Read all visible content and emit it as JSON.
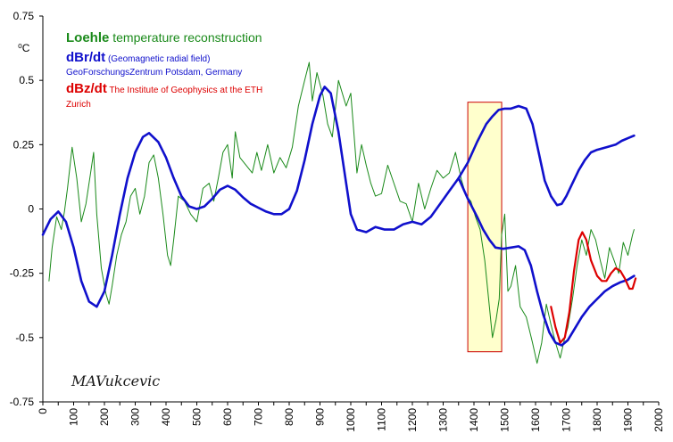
{
  "chart_data": {
    "type": "line",
    "xlim": [
      0,
      2000
    ],
    "ylim": [
      -0.75,
      0.75
    ],
    "x_ticks": [
      "0",
      "100",
      "200",
      "300",
      "400",
      "500",
      "600",
      "700",
      "800",
      "900",
      "1000",
      "1100",
      "1200",
      "1300",
      "1400",
      "1500",
      "1600",
      "1700",
      "1800",
      "1900",
      "2000"
    ],
    "y_ticks": [
      "0.75",
      "0.5",
      "0.25",
      "0",
      "-0.25",
      "-0.5",
      "-0.75"
    ],
    "y_unit": "⁰C",
    "legend": [
      {
        "bold": "Loehle",
        "text": " temperature reconstruction",
        "color": "#1a8a1a"
      },
      {
        "bold": "dBr/dt",
        "text": " (Geomagnetic radial field)",
        "color": "#1010cc"
      },
      {
        "bold": "",
        "text": "GeoForschungsZentrum Potsdam, Germany",
        "color": "#1010cc"
      },
      {
        "bold": "dBz/dt",
        "text": " The Institute of Geophysics at the ETH",
        "color": "#dd0000"
      },
      {
        "bold": "",
        "text": "Zurich",
        "color": "#dd0000"
      }
    ],
    "signature": "MAVukcevic",
    "highlight_box": {
      "x_range": [
        1380,
        1490
      ],
      "y_range": [
        -0.555,
        0.415
      ],
      "fill": "#ffffcc",
      "stroke": "#cc0000"
    },
    "series": [
      {
        "name": "Loehle",
        "color": "#1a8a1a",
        "points": [
          [
            20,
            -0.28
          ],
          [
            30,
            -0.15
          ],
          [
            45,
            -0.03
          ],
          [
            60,
            -0.08
          ],
          [
            70,
            -0.01
          ],
          [
            80,
            0.08
          ],
          [
            95,
            0.24
          ],
          [
            110,
            0.12
          ],
          [
            125,
            -0.05
          ],
          [
            140,
            0.02
          ],
          [
            155,
            0.14
          ],
          [
            165,
            0.22
          ],
          [
            175,
            -0.02
          ],
          [
            190,
            -0.23
          ],
          [
            205,
            -0.33
          ],
          [
            215,
            -0.37
          ],
          [
            225,
            -0.3
          ],
          [
            240,
            -0.18
          ],
          [
            255,
            -0.1
          ],
          [
            270,
            -0.05
          ],
          [
            285,
            0.05
          ],
          [
            300,
            0.08
          ],
          [
            315,
            -0.02
          ],
          [
            330,
            0.05
          ],
          [
            345,
            0.18
          ],
          [
            360,
            0.21
          ],
          [
            375,
            0.12
          ],
          [
            390,
            -0.02
          ],
          [
            405,
            -0.18
          ],
          [
            415,
            -0.22
          ],
          [
            425,
            -0.12
          ],
          [
            440,
            0.05
          ],
          [
            460,
            0.03
          ],
          [
            480,
            -0.02
          ],
          [
            500,
            -0.05
          ],
          [
            520,
            0.08
          ],
          [
            540,
            0.1
          ],
          [
            555,
            0.03
          ],
          [
            570,
            0.12
          ],
          [
            585,
            0.22
          ],
          [
            600,
            0.25
          ],
          [
            615,
            0.12
          ],
          [
            625,
            0.3
          ],
          [
            640,
            0.2
          ],
          [
            660,
            0.17
          ],
          [
            680,
            0.14
          ],
          [
            695,
            0.22
          ],
          [
            710,
            0.15
          ],
          [
            730,
            0.25
          ],
          [
            750,
            0.14
          ],
          [
            770,
            0.2
          ],
          [
            790,
            0.16
          ],
          [
            810,
            0.24
          ],
          [
            830,
            0.4
          ],
          [
            850,
            0.5
          ],
          [
            865,
            0.57
          ],
          [
            875,
            0.42
          ],
          [
            890,
            0.53
          ],
          [
            910,
            0.44
          ],
          [
            925,
            0.33
          ],
          [
            940,
            0.28
          ],
          [
            960,
            0.5
          ],
          [
            985,
            0.4
          ],
          [
            1000,
            0.45
          ],
          [
            1010,
            0.3
          ],
          [
            1020,
            0.14
          ],
          [
            1035,
            0.25
          ],
          [
            1050,
            0.17
          ],
          [
            1065,
            0.1
          ],
          [
            1080,
            0.05
          ],
          [
            1100,
            0.06
          ],
          [
            1120,
            0.17
          ],
          [
            1140,
            0.1
          ],
          [
            1160,
            0.03
          ],
          [
            1180,
            0.02
          ],
          [
            1200,
            -0.05
          ],
          [
            1220,
            0.1
          ],
          [
            1240,
            0.0
          ],
          [
            1260,
            0.08
          ],
          [
            1280,
            0.15
          ],
          [
            1300,
            0.12
          ],
          [
            1320,
            0.14
          ],
          [
            1340,
            0.22
          ],
          [
            1360,
            0.11
          ],
          [
            1375,
            0.05
          ],
          [
            1390,
            0.03
          ],
          [
            1405,
            -0.03
          ],
          [
            1420,
            -0.08
          ],
          [
            1435,
            -0.2
          ],
          [
            1450,
            -0.38
          ],
          [
            1460,
            -0.5
          ],
          [
            1472,
            -0.43
          ],
          [
            1482,
            -0.35
          ],
          [
            1490,
            -0.1
          ],
          [
            1500,
            -0.02
          ],
          [
            1510,
            -0.32
          ],
          [
            1520,
            -0.3
          ],
          [
            1535,
            -0.22
          ],
          [
            1550,
            -0.38
          ],
          [
            1570,
            -0.42
          ],
          [
            1590,
            -0.52
          ],
          [
            1605,
            -0.6
          ],
          [
            1620,
            -0.52
          ],
          [
            1635,
            -0.37
          ],
          [
            1650,
            -0.45
          ],
          [
            1665,
            -0.52
          ],
          [
            1680,
            -0.58
          ],
          [
            1695,
            -0.5
          ],
          [
            1705,
            -0.46
          ],
          [
            1720,
            -0.35
          ],
          [
            1735,
            -0.22
          ],
          [
            1750,
            -0.12
          ],
          [
            1765,
            -0.18
          ],
          [
            1780,
            -0.08
          ],
          [
            1795,
            -0.12
          ],
          [
            1810,
            -0.2
          ],
          [
            1825,
            -0.27
          ],
          [
            1840,
            -0.15
          ],
          [
            1855,
            -0.2
          ],
          [
            1870,
            -0.25
          ],
          [
            1885,
            -0.13
          ],
          [
            1900,
            -0.18
          ],
          [
            1915,
            -0.1
          ],
          [
            1920,
            -0.08
          ]
        ]
      },
      {
        "name": "dBr/dt",
        "color": "#1010cc",
        "points": [
          [
            0,
            -0.1
          ],
          [
            25,
            -0.04
          ],
          [
            50,
            -0.01
          ],
          [
            75,
            -0.05
          ],
          [
            100,
            -0.15
          ],
          [
            125,
            -0.28
          ],
          [
            150,
            -0.36
          ],
          [
            175,
            -0.38
          ],
          [
            200,
            -0.32
          ],
          [
            225,
            -0.18
          ],
          [
            250,
            -0.02
          ],
          [
            275,
            0.12
          ],
          [
            300,
            0.22
          ],
          [
            325,
            0.28
          ],
          [
            345,
            0.295
          ],
          [
            375,
            0.26
          ],
          [
            400,
            0.2
          ],
          [
            425,
            0.12
          ],
          [
            450,
            0.05
          ],
          [
            475,
            0.01
          ],
          [
            500,
            0.0
          ],
          [
            525,
            0.01
          ],
          [
            550,
            0.04
          ],
          [
            575,
            0.075
          ],
          [
            600,
            0.09
          ],
          [
            625,
            0.075
          ],
          [
            650,
            0.045
          ],
          [
            675,
            0.02
          ],
          [
            700,
            0.005
          ],
          [
            725,
            -0.01
          ],
          [
            750,
            -0.02
          ],
          [
            775,
            -0.02
          ],
          [
            800,
            0.0
          ],
          [
            825,
            0.07
          ],
          [
            850,
            0.19
          ],
          [
            875,
            0.33
          ],
          [
            900,
            0.44
          ],
          [
            915,
            0.475
          ],
          [
            935,
            0.45
          ],
          [
            960,
            0.3
          ],
          [
            985,
            0.1
          ],
          [
            1000,
            -0.02
          ],
          [
            1020,
            -0.08
          ],
          [
            1050,
            -0.09
          ],
          [
            1080,
            -0.07
          ],
          [
            1110,
            -0.08
          ],
          [
            1140,
            -0.08
          ],
          [
            1170,
            -0.06
          ],
          [
            1200,
            -0.05
          ],
          [
            1230,
            -0.06
          ],
          [
            1260,
            -0.03
          ],
          [
            1290,
            0.02
          ],
          [
            1320,
            0.07
          ],
          [
            1350,
            0.12
          ],
          [
            1380,
            0.18
          ],
          [
            1410,
            0.26
          ],
          [
            1440,
            0.33
          ],
          [
            1460,
            0.36
          ],
          [
            1480,
            0.385
          ],
          [
            1500,
            0.39
          ],
          [
            1520,
            0.39
          ],
          [
            1545,
            0.4
          ],
          [
            1570,
            0.39
          ],
          [
            1590,
            0.33
          ],
          [
            1610,
            0.22
          ],
          [
            1630,
            0.11
          ],
          [
            1650,
            0.05
          ],
          [
            1670,
            0.015
          ],
          [
            1685,
            0.02
          ],
          [
            1700,
            0.05
          ],
          [
            1720,
            0.1
          ],
          [
            1740,
            0.15
          ],
          [
            1760,
            0.19
          ],
          [
            1780,
            0.22
          ],
          [
            1800,
            0.23
          ],
          [
            1830,
            0.24
          ],
          [
            1860,
            0.25
          ],
          [
            1880,
            0.265
          ],
          [
            1900,
            0.275
          ],
          [
            1920,
            0.285
          ]
        ]
      },
      {
        "name": "dBr/dt (lower branch)",
        "color": "#1010cc",
        "points": [
          [
            1350,
            0.12
          ],
          [
            1380,
            0.04
          ],
          [
            1410,
            -0.03
          ],
          [
            1430,
            -0.08
          ],
          [
            1450,
            -0.12
          ],
          [
            1470,
            -0.15
          ],
          [
            1495,
            -0.155
          ],
          [
            1520,
            -0.15
          ],
          [
            1545,
            -0.145
          ],
          [
            1565,
            -0.16
          ],
          [
            1585,
            -0.22
          ],
          [
            1605,
            -0.32
          ],
          [
            1625,
            -0.41
          ],
          [
            1645,
            -0.48
          ],
          [
            1665,
            -0.52
          ],
          [
            1685,
            -0.53
          ],
          [
            1705,
            -0.51
          ],
          [
            1725,
            -0.47
          ],
          [
            1750,
            -0.42
          ],
          [
            1775,
            -0.38
          ],
          [
            1800,
            -0.35
          ],
          [
            1825,
            -0.32
          ],
          [
            1850,
            -0.3
          ],
          [
            1875,
            -0.285
          ],
          [
            1900,
            -0.275
          ],
          [
            1920,
            -0.26
          ]
        ]
      },
      {
        "name": "dBz/dt",
        "color": "#dd0000",
        "points": [
          [
            1650,
            -0.38
          ],
          [
            1665,
            -0.46
          ],
          [
            1680,
            -0.52
          ],
          [
            1695,
            -0.5
          ],
          [
            1710,
            -0.4
          ],
          [
            1725,
            -0.24
          ],
          [
            1740,
            -0.12
          ],
          [
            1752,
            -0.09
          ],
          [
            1765,
            -0.12
          ],
          [
            1780,
            -0.2
          ],
          [
            1800,
            -0.26
          ],
          [
            1815,
            -0.28
          ],
          [
            1830,
            -0.28
          ],
          [
            1845,
            -0.25
          ],
          [
            1860,
            -0.23
          ],
          [
            1875,
            -0.24
          ],
          [
            1890,
            -0.27
          ],
          [
            1905,
            -0.31
          ],
          [
            1915,
            -0.31
          ],
          [
            1925,
            -0.27
          ]
        ]
      }
    ]
  }
}
